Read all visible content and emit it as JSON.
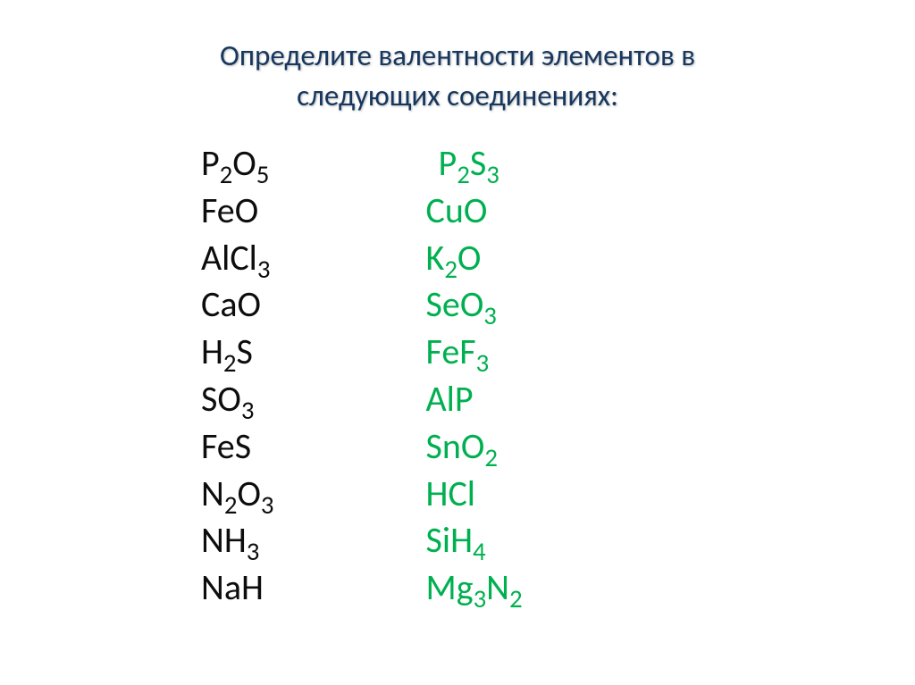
{
  "title_line1": "Определите валентности элементов в",
  "title_line2": "следующих соединениях:",
  "title_color": "#17375e",
  "left_color": "#0d0d0d",
  "right_color": "#00b050",
  "background_color": "#ffffff",
  "font_family": "Calibri, Arial, sans-serif",
  "title_fontsize": 33,
  "formula_fontsize": 40,
  "left_column": [
    {
      "parts": [
        {
          "t": "P"
        },
        {
          "t": "2",
          "sub": true
        },
        {
          "t": "O"
        },
        {
          "t": "5",
          "sub": true
        }
      ]
    },
    {
      "parts": [
        {
          "t": "FeO"
        }
      ]
    },
    {
      "parts": [
        {
          "t": "AlCl"
        },
        {
          "t": "3",
          "sub": true
        }
      ]
    },
    {
      "parts": [
        {
          "t": "CaO"
        }
      ]
    },
    {
      "parts": [
        {
          "t": "H"
        },
        {
          "t": "2",
          "sub": true
        },
        {
          "t": "S"
        }
      ]
    },
    {
      "parts": [
        {
          "t": "SO"
        },
        {
          "t": "3",
          "sub": true
        }
      ]
    },
    {
      "parts": [
        {
          "t": "FeS"
        }
      ]
    },
    {
      "parts": [
        {
          "t": "N"
        },
        {
          "t": "2",
          "sub": true
        },
        {
          "t": "O"
        },
        {
          "t": "3",
          "sub": true
        }
      ]
    },
    {
      "parts": [
        {
          "t": "NH"
        },
        {
          "t": "3",
          "sub": true
        }
      ]
    },
    {
      "parts": [
        {
          "t": "NaH"
        }
      ]
    }
  ],
  "right_column": [
    {
      "parts": [
        {
          "t": "P"
        },
        {
          "t": "2",
          "sub": true
        },
        {
          "t": "S"
        },
        {
          "t": "3",
          "sub": true
        }
      ]
    },
    {
      "parts": [
        {
          "t": "CuO"
        }
      ]
    },
    {
      "parts": [
        {
          "t": "K"
        },
        {
          "t": "2",
          "sub": true
        },
        {
          "t": "O"
        }
      ]
    },
    {
      "parts": [
        {
          "t": "SeO"
        },
        {
          "t": "3",
          "sub": true
        }
      ]
    },
    {
      "parts": [
        {
          "t": "FeF"
        },
        {
          "t": "3",
          "sub": true
        }
      ]
    },
    {
      "parts": [
        {
          "t": "AlP"
        }
      ]
    },
    {
      "parts": [
        {
          "t": "SnO"
        },
        {
          "t": "2",
          "sub": true
        }
      ]
    },
    {
      "parts": [
        {
          "t": "HCl"
        }
      ]
    },
    {
      "parts": [
        {
          "t": "SiH"
        },
        {
          "t": "4",
          "sub": true
        }
      ]
    },
    {
      "parts": [
        {
          "t": "Mg"
        },
        {
          "t": "3",
          "sub": true
        },
        {
          "t": "N"
        },
        {
          "t": "2",
          "sub": true
        }
      ]
    }
  ]
}
